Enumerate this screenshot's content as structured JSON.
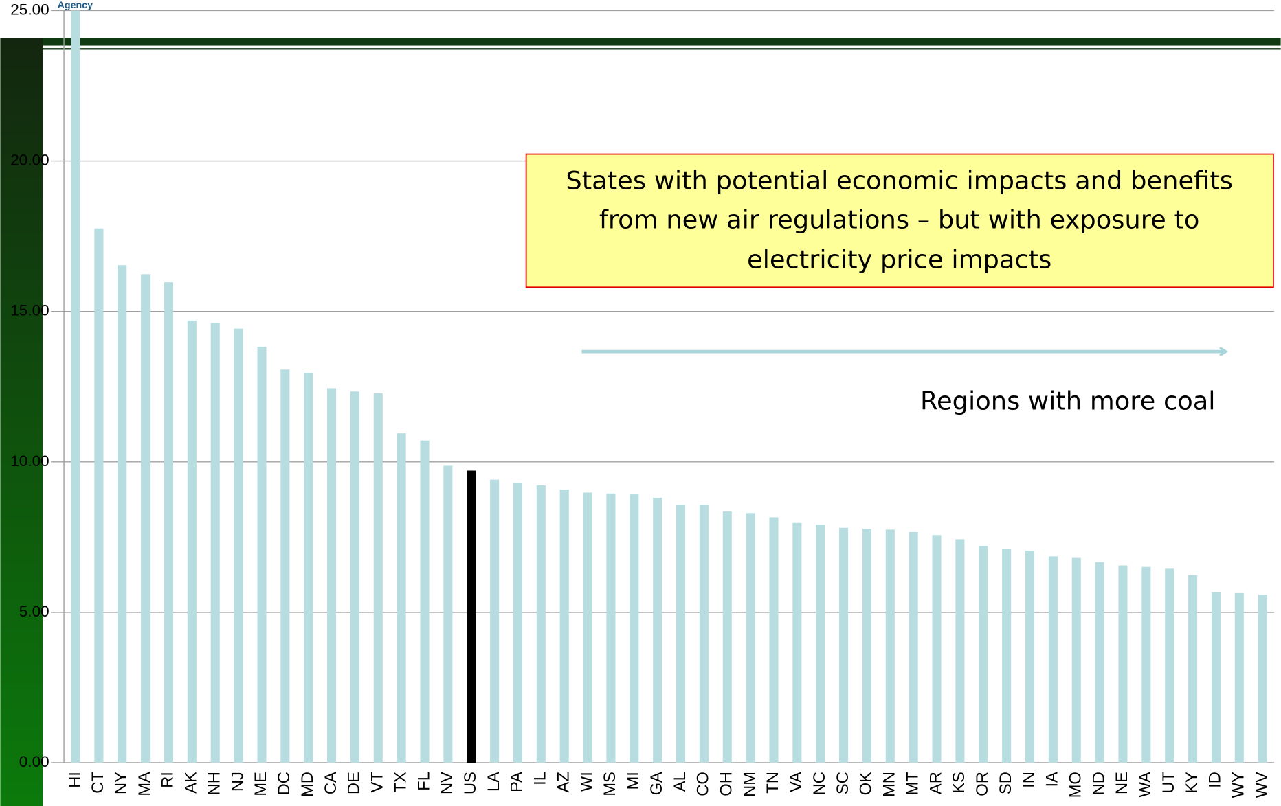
{
  "chart_data": {
    "type": "bar",
    "header_text": "Agency",
    "categories": [
      "HI",
      "CT",
      "NY",
      "MA",
      "RI",
      "AK",
      "NH",
      "NJ",
      "ME",
      "DC",
      "MD",
      "CA",
      "DE",
      "VT",
      "TX",
      "FL",
      "NV",
      "US",
      "LA",
      "PA",
      "IL",
      "AZ",
      "WI",
      "MS",
      "MI",
      "GA",
      "AL",
      "CO",
      "OH",
      "NM",
      "TN",
      "VA",
      "NC",
      "SC",
      "OK",
      "MN",
      "MT",
      "AR",
      "KS",
      "OR",
      "SD",
      "IN",
      "IA",
      "MO",
      "ND",
      "NE",
      "WA",
      "UT",
      "KY",
      "ID",
      "WY",
      "WV"
    ],
    "values": [
      25,
      17.76,
      16.54,
      16.24,
      15.97,
      14.7,
      14.62,
      14.43,
      13.83,
      13.07,
      12.96,
      12.45,
      12.34,
      12.28,
      10.95,
      10.71,
      9.87,
      9.71,
      9.41,
      9.3,
      9.22,
      9.08,
      8.98,
      8.95,
      8.92,
      8.81,
      8.57,
      8.57,
      8.35,
      8.3,
      8.16,
      7.97,
      7.92,
      7.81,
      7.78,
      7.75,
      7.67,
      7.57,
      7.43,
      7.21,
      7.1,
      7.05,
      6.86,
      6.81,
      6.67,
      6.56,
      6.51,
      6.45,
      6.24,
      5.67,
      5.64,
      5.59
    ],
    "color": "#b8dde1",
    "highlight": {
      "category": "US",
      "color": "#000000"
    },
    "ylim": [
      0,
      25
    ],
    "yticks": [
      {
        "value": 0,
        "label": "0.00"
      },
      {
        "value": 5,
        "label": "5.00"
      },
      {
        "value": 10,
        "label": "10.00"
      },
      {
        "value": 15,
        "label": "15.00"
      },
      {
        "value": 20,
        "label": "20.00"
      },
      {
        "value": 25,
        "label": "25.00"
      }
    ],
    "grid": true,
    "annotations": {
      "box": [
        "States with potential economic impacts and benefits",
        "from new air regulations – but with exposure to",
        "electricity price impacts"
      ],
      "arrow": "Regions with more coal"
    }
  }
}
